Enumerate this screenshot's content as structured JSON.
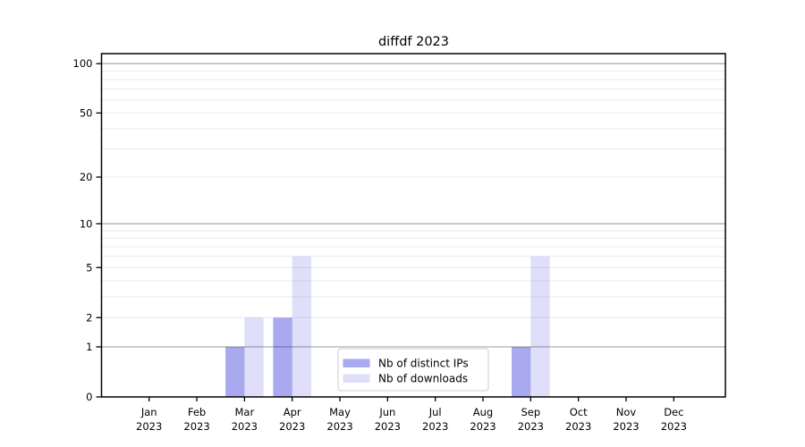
{
  "chart_data": {
    "type": "bar",
    "title": "diffdf 2023",
    "x": {
      "categories": [
        "Jan",
        "Feb",
        "Mar",
        "Apr",
        "May",
        "Jun",
        "Jul",
        "Aug",
        "Sep",
        "Oct",
        "Nov",
        "Dec"
      ],
      "year_label": "2023"
    },
    "y_scale": "log10(1+value)",
    "ylim": [
      0,
      116
    ],
    "yticks": [
      0,
      1,
      2,
      5,
      10,
      20,
      50,
      100
    ],
    "grid": {
      "major_values": [
        1,
        10,
        100
      ],
      "minor_values": [
        2,
        3,
        4,
        5,
        6,
        7,
        8,
        9,
        20,
        30,
        40,
        50,
        60,
        70,
        80,
        90
      ],
      "major_color": "#b0b0b0",
      "minor_color": "#e9e9e9"
    },
    "series": [
      {
        "key": "distinct-ips",
        "name": "Nb of distinct IPs",
        "color": "rgba(10,10,212,0.35)",
        "values": [
          0,
          0,
          1,
          2,
          0,
          0,
          0,
          0,
          1,
          0,
          0,
          0
        ]
      },
      {
        "key": "downloads",
        "name": "Nb of downloads",
        "color": "rgba(10,10,212,0.13)",
        "values": [
          0,
          0,
          2,
          6,
          0,
          0,
          0,
          0,
          6,
          0,
          0,
          0
        ]
      }
    ],
    "legend": {
      "position": "inside-bottom-center",
      "border_color": "#cccccc",
      "background": "#ffffff"
    },
    "colors": {
      "axis": "#000000",
      "text": "#000000",
      "background": "#ffffff"
    }
  }
}
